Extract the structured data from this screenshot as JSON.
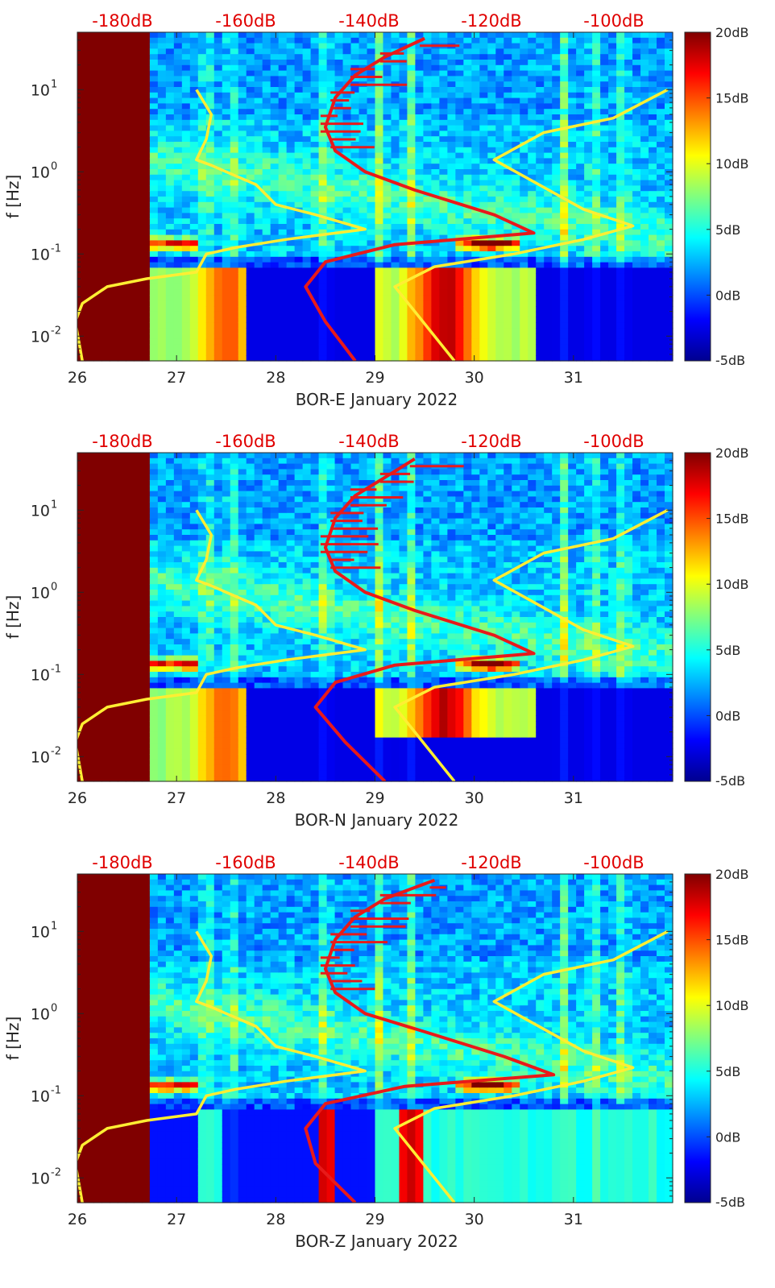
{
  "chart_data": [
    {
      "type": "heatmap",
      "title": "BOR-E January 2022",
      "xlabel": "BOR-E January 2022",
      "ylabel": "f [Hz]",
      "xlim": [
        26,
        32
      ],
      "x_ticks": [
        "26",
        "27",
        "28",
        "29",
        "30",
        "31"
      ],
      "ylim_hz": [
        0.005,
        50
      ],
      "y_ticks": [
        {
          "value": 0.01,
          "base": "10",
          "exp": "-2"
        },
        {
          "value": 0.1,
          "base": "10",
          "exp": "-1"
        },
        {
          "value": 1,
          "base": "10",
          "exp": "0"
        },
        {
          "value": 10,
          "base": "10",
          "exp": "1"
        }
      ],
      "top_axis_labels": [
        "-180dB",
        "-160dB",
        "-140dB",
        "-120dB",
        "-100dB"
      ],
      "colorbar": {
        "min_db": -5,
        "max_db": 20,
        "labels": [
          "20dB",
          "15dB",
          "10dB",
          "5dB",
          "0dB",
          "-5dB"
        ]
      },
      "saturated_until_day": 26.75,
      "series": [
        {
          "name": "noise model bounds (yellow)",
          "color": "#ffee33",
          "left": [
            [
              26.05,
              0.005
            ],
            [
              25.98,
              0.015
            ],
            [
              26.05,
              0.025
            ],
            [
              26.3,
              0.04
            ],
            [
              26.7,
              0.05
            ],
            [
              27.2,
              0.06
            ],
            [
              27.3,
              0.1
            ],
            [
              27.6,
              0.12
            ],
            [
              28.1,
              0.15
            ],
            [
              28.9,
              0.2
            ],
            [
              28.4,
              0.3
            ],
            [
              28.0,
              0.4
            ],
            [
              27.8,
              0.7
            ],
            [
              27.5,
              1.0
            ],
            [
              27.35,
              1.2
            ],
            [
              27.2,
              1.4
            ],
            [
              27.3,
              2.5
            ],
            [
              27.35,
              5
            ],
            [
              27.2,
              10
            ]
          ],
          "right": [
            [
              29.8,
              0.005
            ],
            [
              29.4,
              0.02
            ],
            [
              29.2,
              0.04
            ],
            [
              29.6,
              0.07
            ],
            [
              30.4,
              0.1
            ],
            [
              31.1,
              0.15
            ],
            [
              31.6,
              0.22
            ],
            [
              31.1,
              0.35
            ],
            [
              30.3,
              1.2
            ],
            [
              30.2,
              1.4
            ],
            [
              30.7,
              3
            ],
            [
              31.4,
              4.5
            ],
            [
              31.95,
              10
            ]
          ]
        },
        {
          "name": "BOR-E noise curve (red)",
          "color": "#e81a1a",
          "points": [
            [
              28.8,
              0.005
            ],
            [
              28.5,
              0.015
            ],
            [
              28.3,
              0.04
            ],
            [
              28.5,
              0.08
            ],
            [
              29.2,
              0.13
            ],
            [
              30.6,
              0.18
            ],
            [
              30.2,
              0.3
            ],
            [
              29.4,
              0.6
            ],
            [
              28.9,
              1.0
            ],
            [
              28.6,
              1.8
            ],
            [
              28.5,
              3.5
            ],
            [
              28.6,
              8
            ],
            [
              28.8,
              15
            ],
            [
              29.1,
              25
            ],
            [
              29.5,
              42
            ]
          ]
        }
      ]
    },
    {
      "type": "heatmap",
      "title": "BOR-N January 2022",
      "xlabel": "BOR-N January 2022",
      "ylabel": "f [Hz]",
      "xlim": [
        26,
        32
      ],
      "x_ticks": [
        "26",
        "27",
        "28",
        "29",
        "30",
        "31"
      ],
      "ylim_hz": [
        0.005,
        50
      ],
      "y_ticks": [
        {
          "value": 0.01,
          "base": "10",
          "exp": "-2"
        },
        {
          "value": 0.1,
          "base": "10",
          "exp": "-1"
        },
        {
          "value": 1,
          "base": "10",
          "exp": "0"
        },
        {
          "value": 10,
          "base": "10",
          "exp": "1"
        }
      ],
      "top_axis_labels": [
        "-180dB",
        "-160dB",
        "-140dB",
        "-120dB",
        "-100dB"
      ],
      "colorbar": {
        "min_db": -5,
        "max_db": 20,
        "labels": [
          "20dB",
          "15dB",
          "10dB",
          "5dB",
          "0dB",
          "-5dB"
        ]
      },
      "saturated_until_day": 26.75,
      "series": [
        {
          "name": "noise model bounds (yellow)",
          "color": "#ffee33",
          "left": [
            [
              26.05,
              0.005
            ],
            [
              25.98,
              0.015
            ],
            [
              26.05,
              0.025
            ],
            [
              26.3,
              0.04
            ],
            [
              26.7,
              0.05
            ],
            [
              27.2,
              0.06
            ],
            [
              27.3,
              0.1
            ],
            [
              27.6,
              0.12
            ],
            [
              28.1,
              0.15
            ],
            [
              28.9,
              0.2
            ],
            [
              28.4,
              0.3
            ],
            [
              28.0,
              0.4
            ],
            [
              27.8,
              0.7
            ],
            [
              27.5,
              1.0
            ],
            [
              27.35,
              1.2
            ],
            [
              27.2,
              1.4
            ],
            [
              27.3,
              2.5
            ],
            [
              27.35,
              5
            ],
            [
              27.2,
              10
            ]
          ],
          "right": [
            [
              29.8,
              0.005
            ],
            [
              29.4,
              0.02
            ],
            [
              29.2,
              0.04
            ],
            [
              29.6,
              0.07
            ],
            [
              30.4,
              0.1
            ],
            [
              31.1,
              0.15
            ],
            [
              31.6,
              0.22
            ],
            [
              31.1,
              0.35
            ],
            [
              30.3,
              1.2
            ],
            [
              30.2,
              1.4
            ],
            [
              30.7,
              3
            ],
            [
              31.4,
              4.5
            ],
            [
              31.95,
              10
            ]
          ]
        },
        {
          "name": "BOR-N noise curve (red)",
          "color": "#e81a1a",
          "points": [
            [
              29.1,
              0.005
            ],
            [
              28.7,
              0.015
            ],
            [
              28.4,
              0.04
            ],
            [
              28.6,
              0.08
            ],
            [
              29.2,
              0.13
            ],
            [
              30.6,
              0.18
            ],
            [
              30.2,
              0.3
            ],
            [
              29.4,
              0.6
            ],
            [
              28.9,
              1.0
            ],
            [
              28.6,
              1.8
            ],
            [
              28.5,
              3.5
            ],
            [
              28.6,
              8
            ],
            [
              28.8,
              15
            ],
            [
              29.1,
              25
            ],
            [
              29.4,
              42
            ]
          ]
        }
      ]
    },
    {
      "type": "heatmap",
      "title": "BOR-Z January 2022",
      "xlabel": "BOR-Z January 2022",
      "ylabel": "f [Hz]",
      "xlim": [
        26,
        32
      ],
      "x_ticks": [
        "26",
        "27",
        "28",
        "29",
        "30",
        "31"
      ],
      "ylim_hz": [
        0.005,
        50
      ],
      "y_ticks": [
        {
          "value": 0.01,
          "base": "10",
          "exp": "-2"
        },
        {
          "value": 0.1,
          "base": "10",
          "exp": "-1"
        },
        {
          "value": 1,
          "base": "10",
          "exp": "0"
        },
        {
          "value": 10,
          "base": "10",
          "exp": "1"
        }
      ],
      "top_axis_labels": [
        "-180dB",
        "-160dB",
        "-140dB",
        "-120dB",
        "-100dB"
      ],
      "colorbar": {
        "min_db": -5,
        "max_db": 20,
        "labels": [
          "20dB",
          "15dB",
          "10dB",
          "5dB",
          "0dB",
          "-5dB"
        ]
      },
      "saturated_until_day": 26.75,
      "series": [
        {
          "name": "noise model bounds (yellow)",
          "color": "#ffee33",
          "left": [
            [
              26.05,
              0.005
            ],
            [
              25.98,
              0.015
            ],
            [
              26.05,
              0.025
            ],
            [
              26.3,
              0.04
            ],
            [
              26.7,
              0.05
            ],
            [
              27.2,
              0.06
            ],
            [
              27.3,
              0.1
            ],
            [
              27.6,
              0.12
            ],
            [
              28.1,
              0.15
            ],
            [
              28.9,
              0.2
            ],
            [
              28.4,
              0.3
            ],
            [
              28.0,
              0.4
            ],
            [
              27.8,
              0.7
            ],
            [
              27.5,
              1.0
            ],
            [
              27.35,
              1.2
            ],
            [
              27.2,
              1.4
            ],
            [
              27.3,
              2.5
            ],
            [
              27.35,
              5
            ],
            [
              27.2,
              10
            ]
          ],
          "right": [
            [
              29.8,
              0.005
            ],
            [
              29.4,
              0.02
            ],
            [
              29.2,
              0.04
            ],
            [
              29.6,
              0.07
            ],
            [
              30.4,
              0.1
            ],
            [
              31.1,
              0.15
            ],
            [
              31.6,
              0.22
            ],
            [
              31.1,
              0.35
            ],
            [
              30.3,
              1.2
            ],
            [
              30.2,
              1.4
            ],
            [
              30.7,
              3
            ],
            [
              31.4,
              4.5
            ],
            [
              31.95,
              10
            ]
          ]
        },
        {
          "name": "BOR-Z noise curve (red)",
          "color": "#e81a1a",
          "points": [
            [
              28.8,
              0.005
            ],
            [
              28.4,
              0.015
            ],
            [
              28.3,
              0.04
            ],
            [
              28.5,
              0.08
            ],
            [
              29.3,
              0.13
            ],
            [
              30.8,
              0.18
            ],
            [
              30.3,
              0.3
            ],
            [
              29.5,
              0.6
            ],
            [
              28.9,
              1.0
            ],
            [
              28.6,
              1.8
            ],
            [
              28.5,
              3.5
            ],
            [
              28.6,
              8
            ],
            [
              28.8,
              15
            ],
            [
              29.1,
              25
            ],
            [
              29.6,
              42
            ]
          ]
        }
      ]
    }
  ]
}
